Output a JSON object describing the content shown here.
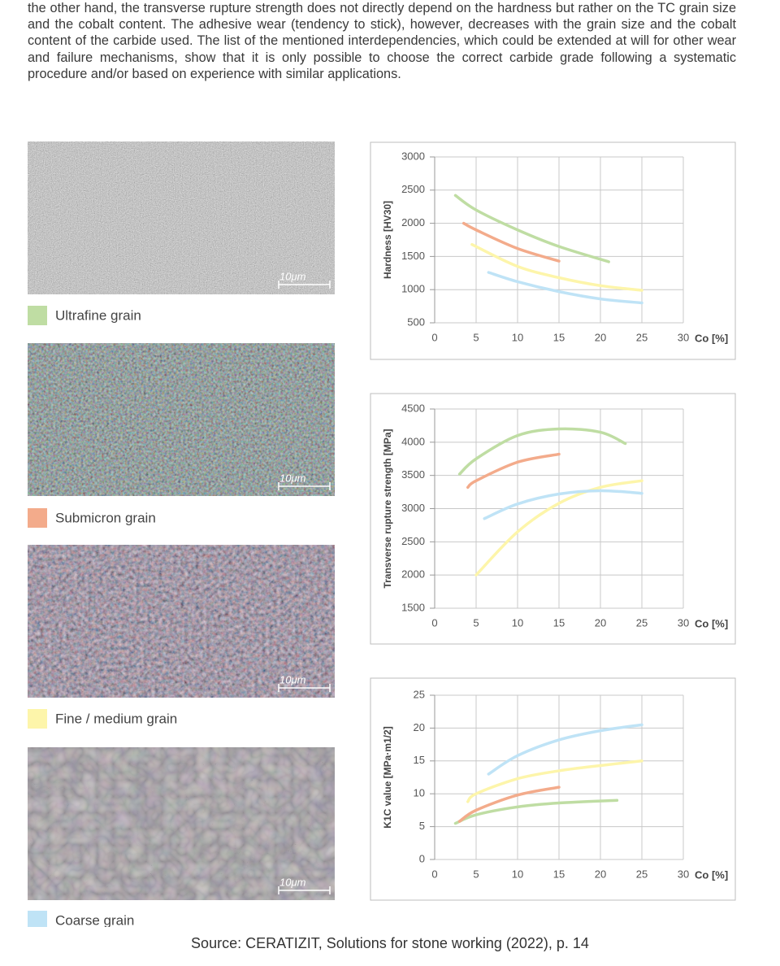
{
  "text": {
    "paragraph": "the other hand, the transverse rupture strength does not directly depend on the hardness but rather on the TC grain size and the cobalt content. The adhesive wear (tendency to stick), however, decreases with the grain size and the cobalt content of the carbide used. The list of the mentioned interdependencies, which could be extended at will for other wear and failure mechanisms, show that it is only possible to choose the correct carbide grade following a systematic procedure and/or based on experience with similar applications.",
    "source": "Source: CERATIZIT, Solutions for stone working (2022), p. 14"
  },
  "grades": [
    {
      "name": "Ultrafine grain",
      "color": "#bfdda3"
    },
    {
      "name": "Submicron grain",
      "color": "#f3ab8b"
    },
    {
      "name": "Fine / medium grain",
      "color": "#fdf5aa"
    },
    {
      "name": "Coarse grain",
      "color": "#bfe3f6"
    }
  ],
  "micrographs": [
    {
      "scale": "10μm"
    },
    {
      "scale": "10μm"
    },
    {
      "scale": "10μm"
    },
    {
      "scale": "10μm"
    }
  ],
  "chart_data": [
    {
      "type": "line",
      "y_label": "Hardness [HV30]",
      "x_label": "Co [%]",
      "xlim": [
        0,
        30
      ],
      "xticks": [
        0,
        5,
        10,
        15,
        20,
        25,
        30
      ],
      "ylim": [
        500,
        3000
      ],
      "yticks": [
        500,
        1000,
        1500,
        2000,
        2500,
        3000
      ],
      "grid": true,
      "series": [
        {
          "color": "#bfdda3",
          "x": [
            2.5,
            5,
            10,
            15,
            21
          ],
          "values": [
            2420,
            2200,
            1900,
            1650,
            1420
          ]
        },
        {
          "color": "#f3ab8b",
          "x": [
            3.5,
            5,
            10,
            15
          ],
          "values": [
            2000,
            1900,
            1620,
            1430
          ]
        },
        {
          "color": "#fdf5aa",
          "x": [
            4.5,
            10,
            15,
            20,
            25
          ],
          "values": [
            1680,
            1350,
            1180,
            1060,
            990
          ]
        },
        {
          "color": "#bfe3f6",
          "x": [
            6.5,
            10,
            15,
            20,
            25
          ],
          "values": [
            1260,
            1120,
            970,
            860,
            800
          ]
        }
      ]
    },
    {
      "type": "line",
      "y_label": "Transverse rupture strength [MPa]",
      "x_label": "Co [%]",
      "xlim": [
        0,
        30
      ],
      "xticks": [
        0,
        5,
        10,
        15,
        20,
        25,
        30
      ],
      "ylim": [
        1500,
        4500
      ],
      "yticks": [
        1500,
        2000,
        2500,
        3000,
        3500,
        4000,
        4500
      ],
      "grid": true,
      "series": [
        {
          "color": "#bfdda3",
          "x": [
            3,
            5,
            10,
            15,
            20,
            23
          ],
          "values": [
            3520,
            3750,
            4100,
            4200,
            4150,
            3980
          ]
        },
        {
          "color": "#f3ab8b",
          "x": [
            4,
            5,
            10,
            15
          ],
          "values": [
            3320,
            3420,
            3700,
            3820
          ]
        },
        {
          "color": "#fdf5aa",
          "x": [
            5,
            10,
            15,
            20,
            25
          ],
          "values": [
            2000,
            2650,
            3080,
            3320,
            3420
          ]
        },
        {
          "color": "#bfe3f6",
          "x": [
            6,
            10,
            15,
            20,
            25
          ],
          "values": [
            2850,
            3070,
            3220,
            3270,
            3230
          ]
        }
      ]
    },
    {
      "type": "line",
      "y_label": "K1C value [MPa·m1/2]",
      "x_label": "Co [%]",
      "xlim": [
        0,
        30
      ],
      "xticks": [
        0,
        5,
        10,
        15,
        20,
        25,
        30
      ],
      "ylim": [
        0,
        25
      ],
      "yticks": [
        0,
        5,
        10,
        15,
        20,
        25
      ],
      "grid": true,
      "series": [
        {
          "color": "#bfdda3",
          "x": [
            2.5,
            5,
            10,
            15,
            22
          ],
          "values": [
            5.5,
            6.8,
            8,
            8.6,
            9
          ]
        },
        {
          "color": "#f3ab8b",
          "x": [
            3,
            5,
            10,
            15
          ],
          "values": [
            5.8,
            7.5,
            9.8,
            11
          ]
        },
        {
          "color": "#fdf5aa",
          "x": [
            4,
            5,
            10,
            15,
            20,
            25
          ],
          "values": [
            8.8,
            10,
            12.3,
            13.5,
            14.3,
            15
          ]
        },
        {
          "color": "#bfe3f6",
          "x": [
            6.5,
            10,
            15,
            20,
            25
          ],
          "values": [
            13,
            15.8,
            18.2,
            19.6,
            20.5
          ]
        }
      ]
    }
  ]
}
